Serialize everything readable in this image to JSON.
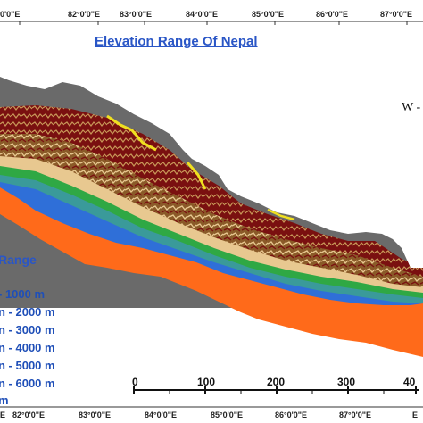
{
  "map": {
    "title": "Elevation Range Of Nepal",
    "north_label": "W -",
    "top_longitudes": [
      "0'0\"E",
      "82°0'0\"E",
      "83°0'0\"E",
      "84°0'0\"E",
      "85°0'0\"E",
      "86°0'0\"E",
      "87°0'0\"E"
    ],
    "bottom_longitudes": [
      "E",
      "82°0'0\"E",
      "83°0'0\"E",
      "84°0'0\"E",
      "85°0'0\"E",
      "86°0'0\"E",
      "87°0'0\"E",
      "E"
    ],
    "legend": {
      "title": "Range",
      "items": [
        "- 1000 m",
        "n - 2000 m",
        "n - 3000 m",
        "n - 4000 m",
        "n - 5000 m",
        "n - 6000 m",
        "m"
      ]
    },
    "scale_labels": [
      "0",
      "100",
      "200",
      "300",
      "40"
    ],
    "colors": {
      "lowland": "#ff6a1a",
      "hills_blue": "#2f6fd8",
      "teal": "#3a9a9a",
      "green": "#2fa844",
      "tan": "#e8c890",
      "brown": "#8a5a28",
      "dark_red": "#7a1010",
      "yellow": "#f0e020",
      "grey": "#6a6a6a",
      "legend_text": "#1f4fb8"
    }
  }
}
